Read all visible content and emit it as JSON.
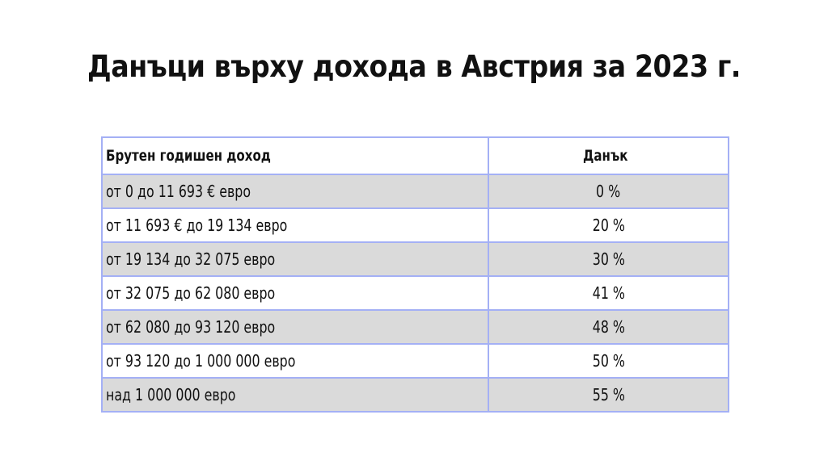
{
  "title": "Данъци върху дохода в Австрия за 2023 г.",
  "table": {
    "headers": {
      "income": "Брутен годишен доход",
      "tax": "Данък"
    },
    "rows": [
      {
        "income": "от 0 до 11 693 € евро",
        "tax": "0 %"
      },
      {
        "income": "от 11 693 € до 19 134 евро",
        "tax": "20 %"
      },
      {
        "income": "от 19 134 до 32 075 евро",
        "tax": "30 %"
      },
      {
        "income": "от 32 075 до 62 080 евро",
        "tax": "41 %"
      },
      {
        "income": "от 62 080 до 93 120 евро",
        "tax": "48 %"
      },
      {
        "income": "от 93 120 до 1 000 000 евро",
        "tax": "50 %"
      },
      {
        "income": "над 1 000 000 евро",
        "tax": "55 %"
      }
    ]
  },
  "colors": {
    "border": "#a4b0f5",
    "row_shade": "#dadada"
  }
}
